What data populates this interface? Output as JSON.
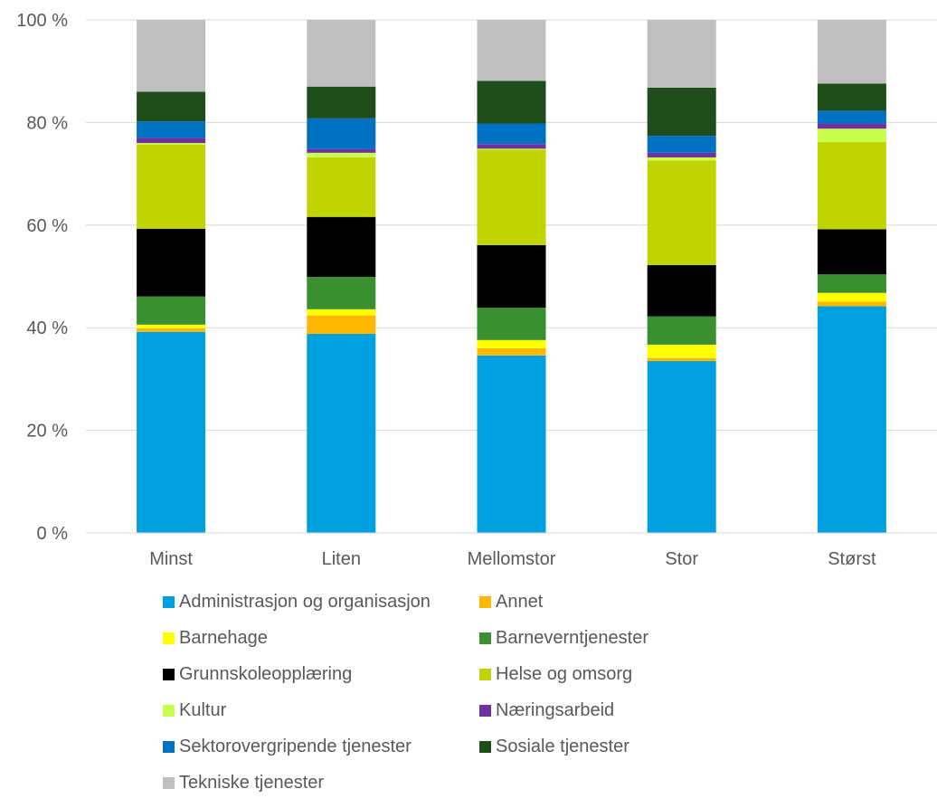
{
  "chart_data": {
    "type": "bar",
    "stacked": true,
    "percent": true,
    "title": "",
    "xlabel": "",
    "ylabel": "",
    "ylim": [
      0,
      100
    ],
    "yticks": [
      "0 %",
      "20 %",
      "40 %",
      "60 %",
      "80 %",
      "100 %"
    ],
    "yticks_values": [
      0,
      20,
      40,
      60,
      80,
      100
    ],
    "grid": true,
    "legend_position": "bottom",
    "categories": [
      "Minst",
      "Liten",
      "Mellomstor",
      "Stor",
      "Størst"
    ],
    "series": [
      {
        "name": "Administrasjon og organisasjon",
        "color": "#00A0E0",
        "values": [
          39.2,
          38.8,
          34.6,
          33.5,
          44.2
        ]
      },
      {
        "name": "Annet",
        "color": "#FFB800",
        "values": [
          0.7,
          3.6,
          1.4,
          0.6,
          0.9
        ]
      },
      {
        "name": "Barnehage",
        "color": "#FFFF00",
        "values": [
          0.7,
          1.2,
          1.6,
          2.6,
          1.7
        ]
      },
      {
        "name": "Barneverntjenester",
        "color": "#3A8F30",
        "values": [
          5.5,
          6.3,
          6.3,
          5.5,
          3.6
        ]
      },
      {
        "name": "Grunnskoleopplæring",
        "color": "#000000",
        "values": [
          13.2,
          11.7,
          12.2,
          10.0,
          8.8
        ]
      },
      {
        "name": "Helse og omsorg",
        "color": "#BFD400",
        "values": [
          16.4,
          11.6,
          18.6,
          20.4,
          17.0
        ]
      },
      {
        "name": "Kultur",
        "color": "#C8FF4A",
        "values": [
          0.3,
          0.9,
          0.2,
          0.6,
          2.6
        ]
      },
      {
        "name": "Næringsarbeid",
        "color": "#7030A0",
        "values": [
          1.0,
          0.7,
          0.9,
          0.9,
          1.0
        ]
      },
      {
        "name": "Sektorovergripende tjenester",
        "color": "#0070C0",
        "values": [
          3.2,
          6.0,
          4.0,
          3.3,
          2.5
        ]
      },
      {
        "name": "Sosiale tjenester",
        "color": "#1E4D1A",
        "values": [
          5.8,
          6.2,
          8.3,
          9.4,
          5.3
        ]
      },
      {
        "name": "Tekniske tjenester",
        "color": "#BFBFBF",
        "values": [
          14.0,
          13.0,
          11.9,
          13.2,
          12.4
        ]
      }
    ]
  }
}
